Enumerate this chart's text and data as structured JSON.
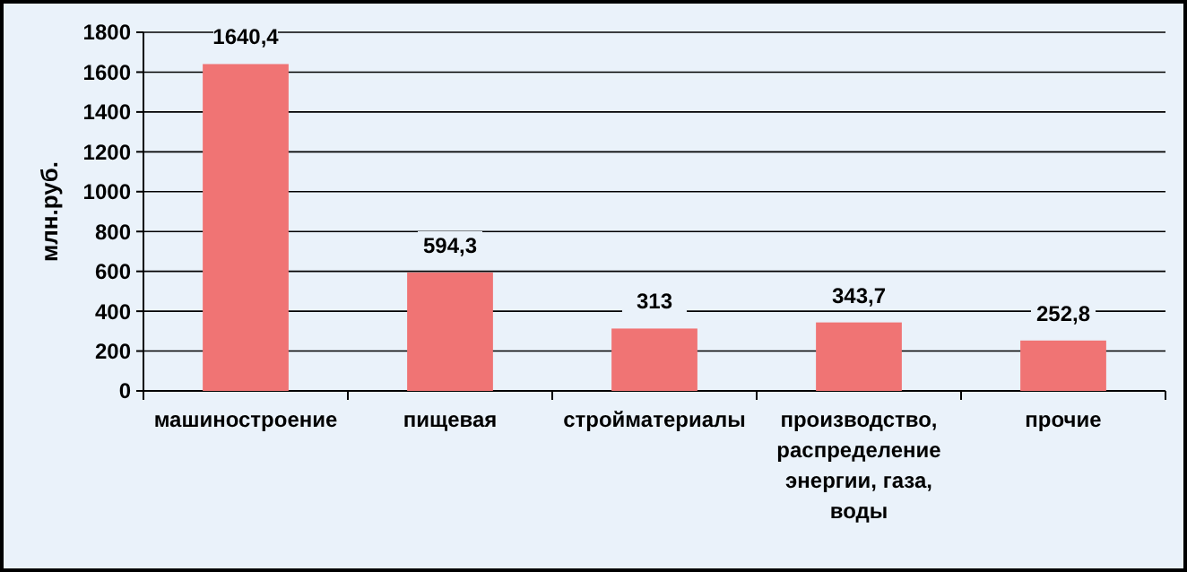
{
  "chart_data": {
    "type": "bar",
    "ylabel": "млн.руб.",
    "categories": [
      "машиностроение",
      "пищевая",
      "стройматериалы",
      "производство, распределение энергии, газа, воды",
      "прочие"
    ],
    "values": [
      1640.4,
      594.3,
      313,
      343.7,
      252.8
    ],
    "value_labels": [
      "1640,4",
      "594,3",
      "313",
      "343,7",
      "252,8"
    ],
    "color": "#f07474",
    "ylim": [
      0,
      1800
    ],
    "yticks": [
      0,
      200,
      400,
      600,
      800,
      1000,
      1200,
      1400,
      1600,
      1800
    ],
    "grid": "y"
  }
}
